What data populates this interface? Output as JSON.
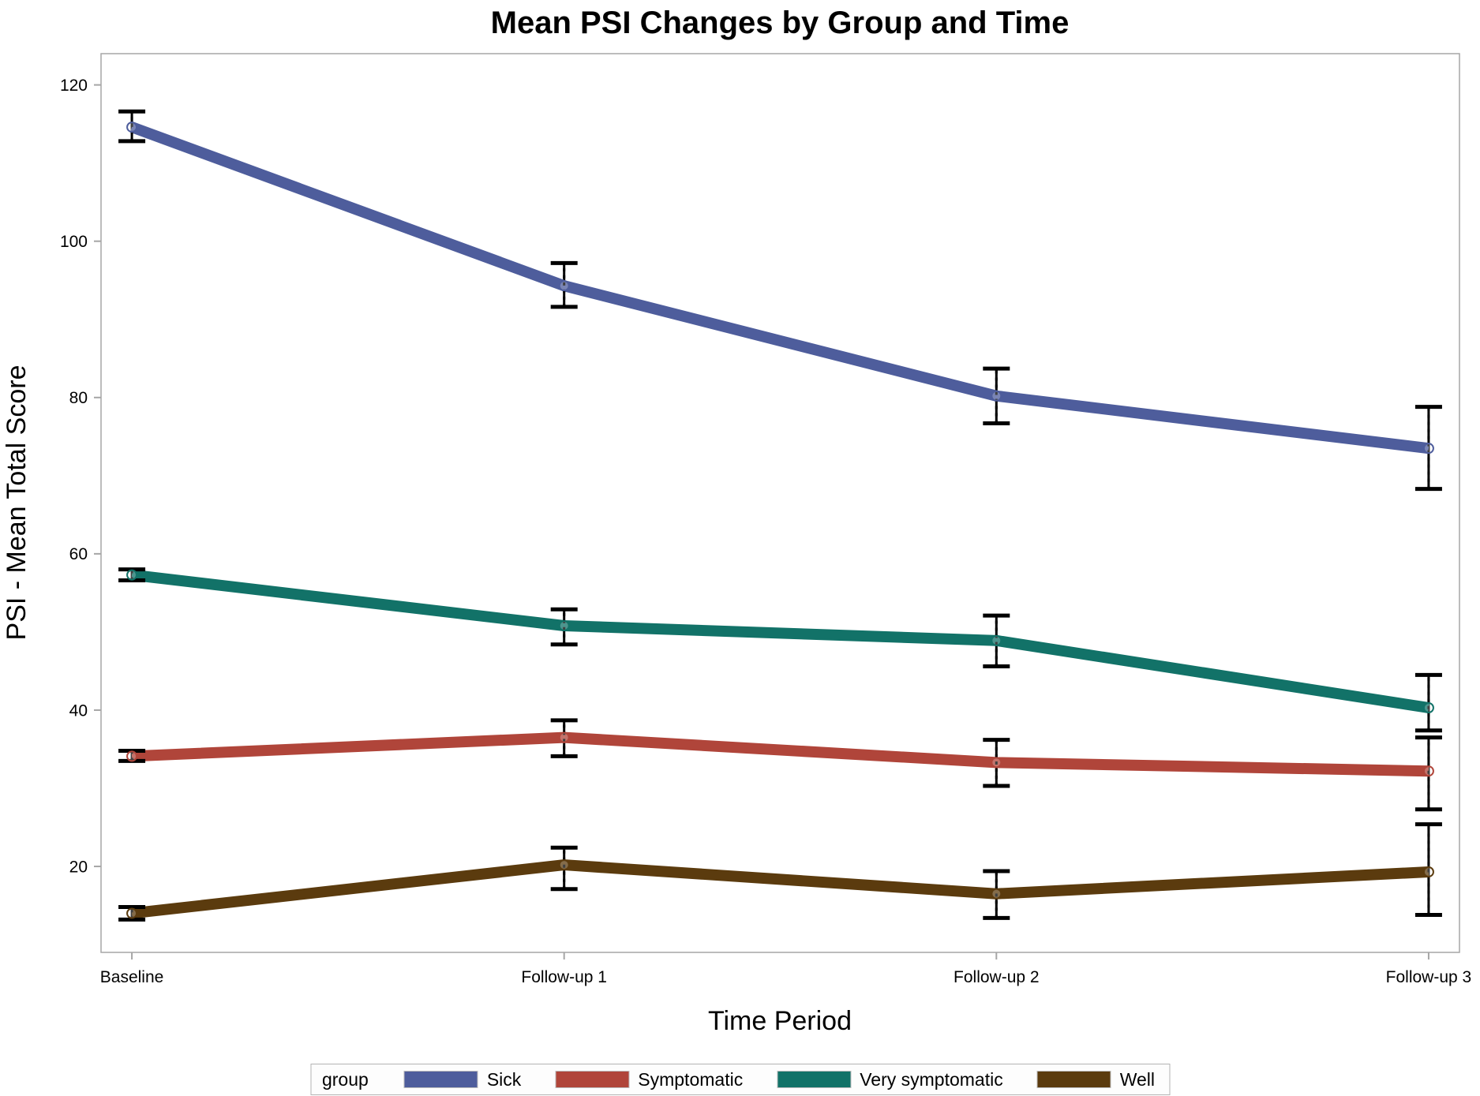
{
  "chart_data": {
    "type": "line",
    "title": "Mean PSI Changes by Group and Time",
    "xlabel": "Time Period",
    "ylabel": "PSI - Mean Total Score",
    "categories": [
      "Baseline",
      "Follow-up 1",
      "Follow-up 2",
      "Follow-up 3"
    ],
    "yticks": [
      20,
      40,
      60,
      80,
      100,
      120
    ],
    "ylim": [
      9,
      124
    ],
    "grid": false,
    "error_bars": true,
    "marker": "open-circle",
    "legend": {
      "title": "group",
      "position": "bottom"
    },
    "series": [
      {
        "name": "Sick",
        "color": "#4e5d9c",
        "values": [
          114.6,
          94.3,
          80.2,
          73.5
        ],
        "ci_low": [
          112.8,
          91.6,
          76.7,
          68.3
        ],
        "ci_high": [
          116.6,
          97.2,
          83.7,
          78.8
        ]
      },
      {
        "name": "Symptomatic",
        "color": "#b0453a",
        "values": [
          34.1,
          36.5,
          33.3,
          32.2
        ],
        "ci_low": [
          33.5,
          34.1,
          30.3,
          27.3
        ],
        "ci_high": [
          34.8,
          38.7,
          36.2,
          36.5
        ]
      },
      {
        "name": "Very symptomatic",
        "color": "#127268",
        "values": [
          57.3,
          50.8,
          48.9,
          40.3
        ],
        "ci_low": [
          56.6,
          48.4,
          45.6,
          37.4
        ],
        "ci_high": [
          58.0,
          52.9,
          52.1,
          44.5
        ]
      },
      {
        "name": "Well",
        "color": "#5b3b0e",
        "values": [
          14.0,
          20.2,
          16.5,
          19.3
        ],
        "ci_low": [
          13.2,
          17.1,
          13.4,
          13.8
        ],
        "ci_high": [
          14.8,
          22.4,
          19.4,
          25.4
        ]
      }
    ]
  }
}
